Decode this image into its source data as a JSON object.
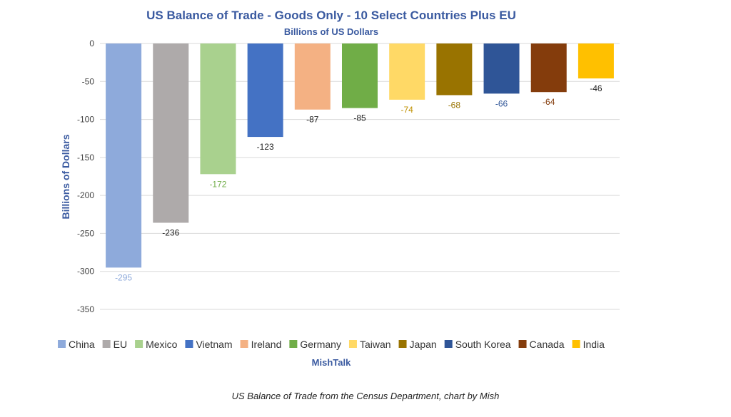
{
  "chart_data": {
    "type": "bar",
    "title": "US Balance of Trade - Goods Only - 10 Select Countries Plus EU",
    "subtitle": "Billions of US Dollars",
    "ylabel": "Billions of Dollars",
    "xlabel": "MishTalk",
    "ylim": [
      -350,
      0
    ],
    "ytick_step": 50,
    "grid": true,
    "legend_position": "bottom",
    "categories": [
      "China",
      "EU",
      "Mexico",
      "Vietnam",
      "Ireland",
      "Germany",
      "Taiwan",
      "Japan",
      "South Korea",
      "Canada",
      "India"
    ],
    "values": [
      -295,
      -236,
      -172,
      -123,
      -87,
      -85,
      -74,
      -68,
      -66,
      -64,
      -46
    ],
    "colors": [
      "#8eaadb",
      "#aeaaaa",
      "#a9d18e",
      "#4472c4",
      "#f4b183",
      "#70ad47",
      "#ffd966",
      "#997300",
      "#2f5597",
      "#843c0c",
      "#ffc000"
    ],
    "label_colors": [
      "#8eaadb",
      "#222222",
      "#70ad47",
      "#222222",
      "#222222",
      "#222222",
      "#bf9000",
      "#997300",
      "#2f5597",
      "#843c0c",
      "#222222"
    ]
  },
  "caption": "US Balance of Trade from the Census Department, chart by Mish"
}
